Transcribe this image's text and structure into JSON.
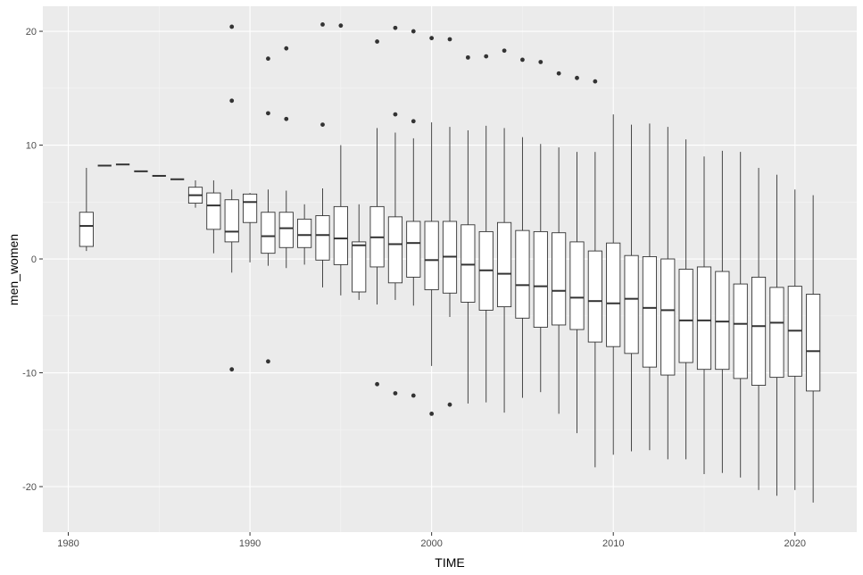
{
  "chart_data": {
    "type": "boxplot",
    "xlabel": "TIME",
    "ylabel": "men_women",
    "xlim": [
      1978.6,
      2023.4
    ],
    "ylim": [
      -24,
      22.2
    ],
    "x_ticks": [
      1980,
      1990,
      2000,
      2010,
      2020
    ],
    "y_ticks": [
      -20,
      -10,
      0,
      10,
      20
    ],
    "grid": true,
    "theme_colors": {
      "panel": "#ebebeb",
      "grid_major": "#ffffff",
      "grid_minor": "#f5f5f5",
      "box_fill": "#ffffff",
      "line": "#333333"
    },
    "boxes": [
      {
        "x": 1981,
        "lo": 0.7,
        "q1": 1.1,
        "med": 2.9,
        "q3": 4.1,
        "hi": 8.0,
        "out": []
      },
      {
        "x": 1982,
        "lo": 8.2,
        "q1": 8.2,
        "med": 8.2,
        "q3": 8.2,
        "hi": 8.2,
        "out": []
      },
      {
        "x": 1983,
        "lo": 8.3,
        "q1": 8.3,
        "med": 8.3,
        "q3": 8.3,
        "hi": 8.3,
        "out": []
      },
      {
        "x": 1984,
        "lo": 7.7,
        "q1": 7.7,
        "med": 7.7,
        "q3": 7.7,
        "hi": 7.7,
        "out": []
      },
      {
        "x": 1985,
        "lo": 7.3,
        "q1": 7.3,
        "med": 7.3,
        "q3": 7.3,
        "hi": 7.3,
        "out": []
      },
      {
        "x": 1986,
        "lo": 7.0,
        "q1": 7.0,
        "med": 7.0,
        "q3": 7.0,
        "hi": 7.0,
        "out": []
      },
      {
        "x": 1987,
        "lo": 4.5,
        "q1": 4.9,
        "med": 5.6,
        "q3": 6.3,
        "hi": 6.9,
        "out": []
      },
      {
        "x": 1988,
        "lo": 0.5,
        "q1": 2.6,
        "med": 4.7,
        "q3": 5.8,
        "hi": 6.9,
        "out": []
      },
      {
        "x": 1989,
        "lo": -1.2,
        "q1": 1.5,
        "med": 2.4,
        "q3": 5.2,
        "hi": 6.1,
        "out": [
          20.4,
          13.9,
          -9.7
        ]
      },
      {
        "x": 1990,
        "lo": -0.3,
        "q1": 3.2,
        "med": 5.0,
        "q3": 5.7,
        "hi": 5.8,
        "out": []
      },
      {
        "x": 1991,
        "lo": -0.6,
        "q1": 0.5,
        "med": 2.0,
        "q3": 4.1,
        "hi": 6.1,
        "out": [
          17.6,
          12.8,
          -9.0
        ]
      },
      {
        "x": 1992,
        "lo": -0.8,
        "q1": 1.0,
        "med": 2.7,
        "q3": 4.1,
        "hi": 6.0,
        "out": [
          18.5,
          12.3
        ]
      },
      {
        "x": 1993,
        "lo": -0.5,
        "q1": 1.0,
        "med": 2.1,
        "q3": 3.5,
        "hi": 4.8,
        "out": []
      },
      {
        "x": 1994,
        "lo": -2.5,
        "q1": -0.1,
        "med": 2.1,
        "q3": 3.8,
        "hi": 6.2,
        "out": [
          20.6,
          11.8
        ]
      },
      {
        "x": 1995,
        "lo": -3.2,
        "q1": -0.5,
        "med": 1.8,
        "q3": 4.6,
        "hi": 10.0,
        "out": [
          20.5
        ]
      },
      {
        "x": 1996,
        "lo": -3.6,
        "q1": -2.9,
        "med": 1.2,
        "q3": 1.5,
        "hi": 4.8,
        "out": []
      },
      {
        "x": 1997,
        "lo": -4.0,
        "q1": -0.7,
        "med": 1.9,
        "q3": 4.6,
        "hi": 11.5,
        "out": [
          19.1,
          -11.0
        ]
      },
      {
        "x": 1998,
        "lo": -3.6,
        "q1": -2.1,
        "med": 1.3,
        "q3": 3.7,
        "hi": 11.1,
        "out": [
          20.3,
          12.7,
          -11.8
        ]
      },
      {
        "x": 1999,
        "lo": -4.1,
        "q1": -1.6,
        "med": 1.4,
        "q3": 3.3,
        "hi": 10.6,
        "out": [
          20.0,
          12.1,
          -12.0
        ]
      },
      {
        "x": 2000,
        "lo": -9.4,
        "q1": -2.7,
        "med": -0.1,
        "q3": 3.3,
        "hi": 12.0,
        "out": [
          19.4,
          -13.6
        ]
      },
      {
        "x": 2001,
        "lo": -5.1,
        "q1": -3.0,
        "med": 0.2,
        "q3": 3.3,
        "hi": 11.6,
        "out": [
          19.3,
          -12.8
        ]
      },
      {
        "x": 2002,
        "lo": -12.7,
        "q1": -3.8,
        "med": -0.5,
        "q3": 3.0,
        "hi": 11.3,
        "out": [
          17.7
        ]
      },
      {
        "x": 2003,
        "lo": -12.6,
        "q1": -4.5,
        "med": -1.0,
        "q3": 2.4,
        "hi": 11.7,
        "out": [
          17.8
        ]
      },
      {
        "x": 2004,
        "lo": -13.5,
        "q1": -4.2,
        "med": -1.3,
        "q3": 3.2,
        "hi": 11.5,
        "out": [
          18.3
        ]
      },
      {
        "x": 2005,
        "lo": -12.2,
        "q1": -5.2,
        "med": -2.3,
        "q3": 2.5,
        "hi": 10.7,
        "out": [
          17.5
        ]
      },
      {
        "x": 2006,
        "lo": -11.7,
        "q1": -6.0,
        "med": -2.4,
        "q3": 2.4,
        "hi": 10.1,
        "out": [
          17.3
        ]
      },
      {
        "x": 2007,
        "lo": -13.6,
        "q1": -5.8,
        "med": -2.8,
        "q3": 2.3,
        "hi": 9.8,
        "out": [
          16.3
        ]
      },
      {
        "x": 2008,
        "lo": -15.3,
        "q1": -6.2,
        "med": -3.4,
        "q3": 1.5,
        "hi": 9.4,
        "out": [
          15.9
        ]
      },
      {
        "x": 2009,
        "lo": -18.3,
        "q1": -7.3,
        "med": -3.7,
        "q3": 0.7,
        "hi": 9.4,
        "out": [
          15.6
        ]
      },
      {
        "x": 2010,
        "lo": -17.2,
        "q1": -7.7,
        "med": -3.9,
        "q3": 1.4,
        "hi": 12.7,
        "out": []
      },
      {
        "x": 2011,
        "lo": -16.9,
        "q1": -8.3,
        "med": -3.5,
        "q3": 0.3,
        "hi": 11.8,
        "out": []
      },
      {
        "x": 2012,
        "lo": -16.8,
        "q1": -9.5,
        "med": -4.3,
        "q3": 0.2,
        "hi": 11.9,
        "out": []
      },
      {
        "x": 2013,
        "lo": -17.6,
        "q1": -10.2,
        "med": -4.5,
        "q3": 0.0,
        "hi": 11.6,
        "out": []
      },
      {
        "x": 2014,
        "lo": -17.6,
        "q1": -9.1,
        "med": -5.4,
        "q3": -0.9,
        "hi": 10.5,
        "out": []
      },
      {
        "x": 2015,
        "lo": -18.9,
        "q1": -9.7,
        "med": -5.4,
        "q3": -0.7,
        "hi": 9.0,
        "out": []
      },
      {
        "x": 2016,
        "lo": -18.8,
        "q1": -9.7,
        "med": -5.5,
        "q3": -1.1,
        "hi": 9.5,
        "out": []
      },
      {
        "x": 2017,
        "lo": -19.2,
        "q1": -10.5,
        "med": -5.7,
        "q3": -2.2,
        "hi": 9.4,
        "out": []
      },
      {
        "x": 2018,
        "lo": -20.3,
        "q1": -11.1,
        "med": -5.9,
        "q3": -1.6,
        "hi": 8.0,
        "out": []
      },
      {
        "x": 2019,
        "lo": -20.8,
        "q1": -10.4,
        "med": -5.6,
        "q3": -2.5,
        "hi": 7.4,
        "out": []
      },
      {
        "x": 2020,
        "lo": -20.3,
        "q1": -10.3,
        "med": -6.3,
        "q3": -2.4,
        "hi": 6.1,
        "out": []
      },
      {
        "x": 2021,
        "lo": -21.4,
        "q1": -11.6,
        "med": -8.1,
        "q3": -3.1,
        "hi": 5.6,
        "out": []
      }
    ]
  }
}
